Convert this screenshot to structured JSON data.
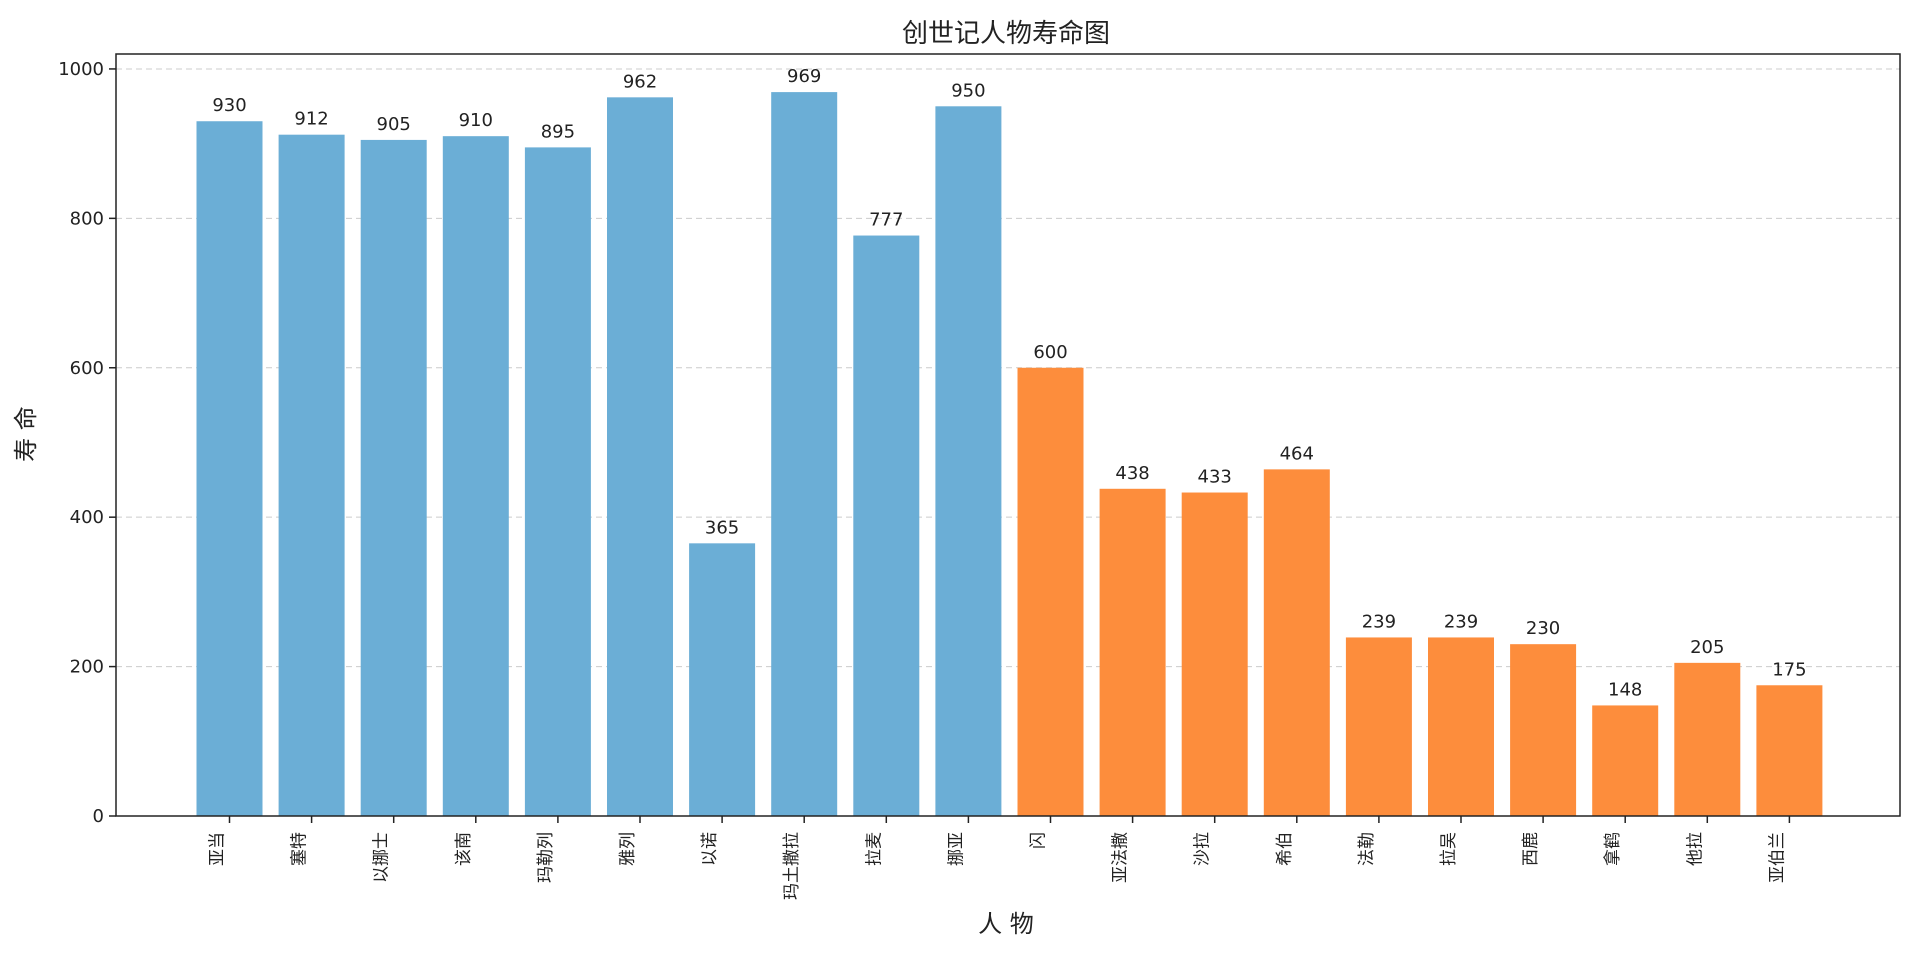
{
  "chart_data": {
    "type": "bar",
    "title": "创世记人物寿命图",
    "xlabel": "人 物",
    "ylabel": "寿 命",
    "ylim": [
      0,
      1020
    ],
    "yticks": [
      0,
      200,
      400,
      600,
      800,
      1000
    ],
    "grid": "y-dashed",
    "categories": [
      "亚当",
      "塞特",
      "以挪士",
      "该南",
      "玛勒列",
      "雅列",
      "以诺",
      "玛土撒拉",
      "拉麦",
      "挪亚",
      "闪",
      "亚法撒",
      "沙拉",
      "希伯",
      "法勒",
      "拉吴",
      "西鹿",
      "拿鹤",
      "他拉",
      "亚伯兰"
    ],
    "values": [
      930,
      912,
      905,
      910,
      895,
      962,
      365,
      969,
      777,
      950,
      600,
      438,
      433,
      464,
      239,
      239,
      230,
      148,
      205,
      175
    ],
    "bar_colors": [
      "#6baed6",
      "#6baed6",
      "#6baed6",
      "#6baed6",
      "#6baed6",
      "#6baed6",
      "#6baed6",
      "#6baed6",
      "#6baed6",
      "#6baed6",
      "#fd8d3c",
      "#fd8d3c",
      "#fd8d3c",
      "#fd8d3c",
      "#fd8d3c",
      "#fd8d3c",
      "#fd8d3c",
      "#fd8d3c",
      "#fd8d3c",
      "#fd8d3c"
    ]
  }
}
